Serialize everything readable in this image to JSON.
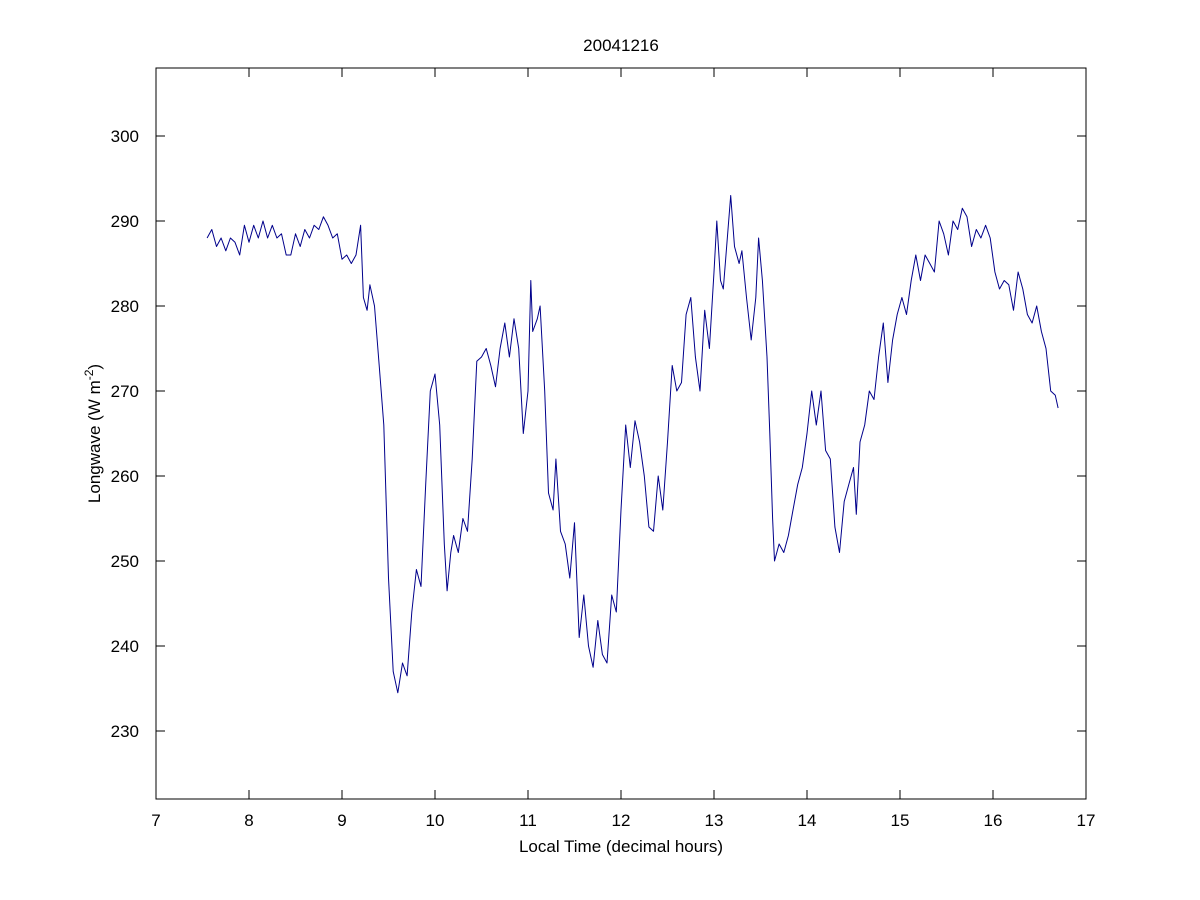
{
  "chart_data": {
    "type": "line",
    "title": "20041216",
    "xlabel": "Local Time (decimal hours)",
    "ylabel": {
      "prefix": "Longwave (W m",
      "superscript": "-2",
      "suffix": ")"
    },
    "xlim": [
      7,
      17
    ],
    "ylim": [
      222,
      308
    ],
    "xticks": [
      7,
      8,
      9,
      10,
      11,
      12,
      13,
      14,
      15,
      16,
      17
    ],
    "yticks": [
      230,
      240,
      250,
      260,
      270,
      280,
      290,
      300
    ],
    "grid": false,
    "line_color": "#00008b",
    "series": [
      {
        "points": [
          [
            7.55,
            288.0
          ],
          [
            7.6,
            289.0
          ],
          [
            7.65,
            287.0
          ],
          [
            7.7,
            288.0
          ],
          [
            7.75,
            286.5
          ],
          [
            7.8,
            288.0
          ],
          [
            7.85,
            287.5
          ],
          [
            7.9,
            286.0
          ],
          [
            7.95,
            289.5
          ],
          [
            8.0,
            287.5
          ],
          [
            8.05,
            289.5
          ],
          [
            8.1,
            288.0
          ],
          [
            8.15,
            290.0
          ],
          [
            8.2,
            288.0
          ],
          [
            8.25,
            289.5
          ],
          [
            8.3,
            288.0
          ],
          [
            8.35,
            288.5
          ],
          [
            8.4,
            286.0
          ],
          [
            8.45,
            286.0
          ],
          [
            8.5,
            288.5
          ],
          [
            8.55,
            287.0
          ],
          [
            8.6,
            289.0
          ],
          [
            8.65,
            288.0
          ],
          [
            8.7,
            289.5
          ],
          [
            8.75,
            289.0
          ],
          [
            8.8,
            290.5
          ],
          [
            8.85,
            289.5
          ],
          [
            8.9,
            288.0
          ],
          [
            8.95,
            288.5
          ],
          [
            9.0,
            285.5
          ],
          [
            9.05,
            286.0
          ],
          [
            9.1,
            285.0
          ],
          [
            9.15,
            286.0
          ],
          [
            9.2,
            289.5
          ],
          [
            9.23,
            281.0
          ],
          [
            9.27,
            279.5
          ],
          [
            9.3,
            282.5
          ],
          [
            9.35,
            280.0
          ],
          [
            9.4,
            273.0
          ],
          [
            9.45,
            266.0
          ],
          [
            9.5,
            248.0
          ],
          [
            9.55,
            237.0
          ],
          [
            9.6,
            234.5
          ],
          [
            9.65,
            238.0
          ],
          [
            9.7,
            236.5
          ],
          [
            9.75,
            244.0
          ],
          [
            9.8,
            249.0
          ],
          [
            9.85,
            247.0
          ],
          [
            9.9,
            259.0
          ],
          [
            9.95,
            270.0
          ],
          [
            10.0,
            272.0
          ],
          [
            10.05,
            266.0
          ],
          [
            10.1,
            252.0
          ],
          [
            10.13,
            246.5
          ],
          [
            10.17,
            251.0
          ],
          [
            10.2,
            253.0
          ],
          [
            10.25,
            251.0
          ],
          [
            10.3,
            255.0
          ],
          [
            10.35,
            253.5
          ],
          [
            10.4,
            262.0
          ],
          [
            10.45,
            273.5
          ],
          [
            10.5,
            274.0
          ],
          [
            10.55,
            275.0
          ],
          [
            10.6,
            273.0
          ],
          [
            10.65,
            270.5
          ],
          [
            10.7,
            275.0
          ],
          [
            10.75,
            278.0
          ],
          [
            10.8,
            274.0
          ],
          [
            10.85,
            278.5
          ],
          [
            10.9,
            275.0
          ],
          [
            10.95,
            265.0
          ],
          [
            11.0,
            270.0
          ],
          [
            11.03,
            283.0
          ],
          [
            11.05,
            277.0
          ],
          [
            11.1,
            278.5
          ],
          [
            11.13,
            280.0
          ],
          [
            11.18,
            270.0
          ],
          [
            11.22,
            258.0
          ],
          [
            11.27,
            256.0
          ],
          [
            11.3,
            262.0
          ],
          [
            11.35,
            253.5
          ],
          [
            11.4,
            252.0
          ],
          [
            11.45,
            248.0
          ],
          [
            11.5,
            254.5
          ],
          [
            11.55,
            241.0
          ],
          [
            11.6,
            246.0
          ],
          [
            11.65,
            240.0
          ],
          [
            11.7,
            237.5
          ],
          [
            11.75,
            243.0
          ],
          [
            11.8,
            239.0
          ],
          [
            11.85,
            238.0
          ],
          [
            11.9,
            246.0
          ],
          [
            11.95,
            244.0
          ],
          [
            12.0,
            256.0
          ],
          [
            12.05,
            266.0
          ],
          [
            12.1,
            261.0
          ],
          [
            12.15,
            266.5
          ],
          [
            12.2,
            264.0
          ],
          [
            12.25,
            260.0
          ],
          [
            12.3,
            254.0
          ],
          [
            12.35,
            253.5
          ],
          [
            12.4,
            260.0
          ],
          [
            12.45,
            256.0
          ],
          [
            12.5,
            264.0
          ],
          [
            12.55,
            273.0
          ],
          [
            12.6,
            270.0
          ],
          [
            12.65,
            271.0
          ],
          [
            12.7,
            279.0
          ],
          [
            12.75,
            281.0
          ],
          [
            12.8,
            274.0
          ],
          [
            12.85,
            270.0
          ],
          [
            12.9,
            279.5
          ],
          [
            12.95,
            275.0
          ],
          [
            13.0,
            284.0
          ],
          [
            13.03,
            290.0
          ],
          [
            13.07,
            283.0
          ],
          [
            13.1,
            282.0
          ],
          [
            13.15,
            289.0
          ],
          [
            13.18,
            293.0
          ],
          [
            13.22,
            287.0
          ],
          [
            13.27,
            285.0
          ],
          [
            13.3,
            286.5
          ],
          [
            13.35,
            281.0
          ],
          [
            13.4,
            276.0
          ],
          [
            13.45,
            281.0
          ],
          [
            13.48,
            288.0
          ],
          [
            13.52,
            283.0
          ],
          [
            13.57,
            274.0
          ],
          [
            13.6,
            265.0
          ],
          [
            13.63,
            255.0
          ],
          [
            13.65,
            250.0
          ],
          [
            13.7,
            252.0
          ],
          [
            13.75,
            251.0
          ],
          [
            13.8,
            253.0
          ],
          [
            13.85,
            256.0
          ],
          [
            13.9,
            259.0
          ],
          [
            13.95,
            261.0
          ],
          [
            14.0,
            265.0
          ],
          [
            14.05,
            270.0
          ],
          [
            14.1,
            266.0
          ],
          [
            14.15,
            270.0
          ],
          [
            14.2,
            263.0
          ],
          [
            14.25,
            262.0
          ],
          [
            14.3,
            254.0
          ],
          [
            14.35,
            251.0
          ],
          [
            14.4,
            257.0
          ],
          [
            14.45,
            259.0
          ],
          [
            14.5,
            261.0
          ],
          [
            14.53,
            255.5
          ],
          [
            14.57,
            264.0
          ],
          [
            14.62,
            266.0
          ],
          [
            14.67,
            270.0
          ],
          [
            14.72,
            269.0
          ],
          [
            14.77,
            274.0
          ],
          [
            14.82,
            278.0
          ],
          [
            14.87,
            271.0
          ],
          [
            14.92,
            276.0
          ],
          [
            14.97,
            279.0
          ],
          [
            15.02,
            281.0
          ],
          [
            15.07,
            279.0
          ],
          [
            15.12,
            283.0
          ],
          [
            15.17,
            286.0
          ],
          [
            15.22,
            283.0
          ],
          [
            15.27,
            286.0
          ],
          [
            15.32,
            285.0
          ],
          [
            15.37,
            284.0
          ],
          [
            15.42,
            290.0
          ],
          [
            15.47,
            288.5
          ],
          [
            15.52,
            286.0
          ],
          [
            15.57,
            290.0
          ],
          [
            15.62,
            289.0
          ],
          [
            15.67,
            291.5
          ],
          [
            15.72,
            290.5
          ],
          [
            15.77,
            287.0
          ],
          [
            15.82,
            289.0
          ],
          [
            15.87,
            288.0
          ],
          [
            15.92,
            289.5
          ],
          [
            15.97,
            288.0
          ],
          [
            16.02,
            284.0
          ],
          [
            16.07,
            282.0
          ],
          [
            16.12,
            283.0
          ],
          [
            16.17,
            282.5
          ],
          [
            16.22,
            279.5
          ],
          [
            16.27,
            284.0
          ],
          [
            16.32,
            282.0
          ],
          [
            16.37,
            279.0
          ],
          [
            16.42,
            278.0
          ],
          [
            16.47,
            280.0
          ],
          [
            16.52,
            277.0
          ],
          [
            16.57,
            275.0
          ],
          [
            16.62,
            270.0
          ],
          [
            16.67,
            269.5
          ],
          [
            16.7,
            268.0
          ]
        ]
      }
    ]
  }
}
